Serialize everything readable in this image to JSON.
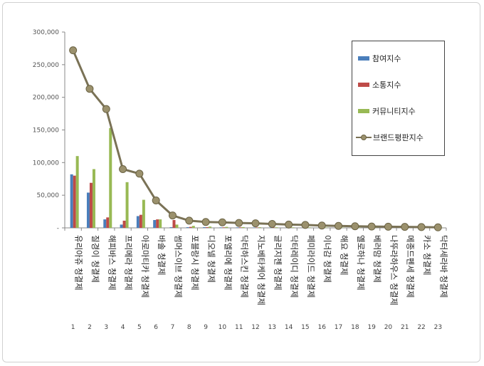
{
  "chart_data": {
    "type": "bar",
    "title": "",
    "xlabel": "",
    "ylabel": "",
    "ylim": [
      0,
      300000
    ],
    "yticks": [
      "-",
      "50,000",
      "100,000",
      "150,000",
      "200,000",
      "250,000",
      "300,000"
    ],
    "ytick_values": [
      0,
      50000,
      100000,
      150000,
      200000,
      250000,
      300000
    ],
    "grid": false,
    "legend_position": "top-right",
    "categories": [
      "유리아쥬 청결제",
      "질경이 청결제",
      "해피바스 청결제",
      "프리메라 청결제",
      "아로마티카 청결제",
      "바솔 청결제",
      "썸머스이브 청결제",
      "포블랑시 청결제",
      "디오넬 청결제",
      "포엘리에 청결제",
      "닥터하스킨 청결제",
      "지노베타케어 청결제",
      "글리지젠 청결제",
      "닥터레이디 청결제",
      "페미라이드 청결제",
      "이너감 청결제",
      "해요 청결제",
      "옐로하나 청결제",
      "베러맘 청결제",
      "나뚜라하우스 청결제",
      "메종드펜세 청결제",
      "카소 청결제",
      "닥터세라바 청결제"
    ],
    "ranks": [
      "1",
      "2",
      "3",
      "4",
      "5",
      "6",
      "7",
      "8",
      "9",
      "10",
      "11",
      "12",
      "13",
      "14",
      "15",
      "16",
      "17",
      "18",
      "19",
      "20",
      "21",
      "22",
      "23"
    ],
    "series": [
      {
        "name": "참여지수",
        "kind": "bar",
        "color": "#4a7ebb",
        "values": [
          82000,
          54000,
          13000,
          5000,
          18000,
          12000,
          1000,
          1000,
          1000,
          700,
          700,
          500,
          500,
          400,
          400,
          300,
          300,
          300,
          200,
          200,
          200,
          200,
          100
        ]
      },
      {
        "name": "소통지수",
        "kind": "bar",
        "color": "#be4b48",
        "values": [
          80000,
          69000,
          16000,
          11000,
          20000,
          13000,
          12000,
          1500,
          1000,
          800,
          800,
          600,
          600,
          500,
          400,
          300,
          300,
          300,
          300,
          200,
          200,
          200,
          100
        ]
      },
      {
        "name": "커뮤니티지수",
        "kind": "bar",
        "color": "#98b954",
        "values": [
          110000,
          90000,
          153000,
          70000,
          43000,
          13000,
          5000,
          3000,
          2000,
          1500,
          1200,
          1000,
          900,
          800,
          700,
          600,
          500,
          500,
          400,
          400,
          300,
          300,
          200
        ]
      },
      {
        "name": "브랜드평판지수",
        "kind": "line",
        "color": "#7a7256",
        "values": [
          272000,
          213000,
          182000,
          90000,
          83000,
          42000,
          19000,
          11000,
          9000,
          8500,
          7500,
          7000,
          6000,
          5000,
          4500,
          3500,
          3000,
          2500,
          2000,
          1800,
          1500,
          1200,
          800
        ]
      }
    ]
  }
}
